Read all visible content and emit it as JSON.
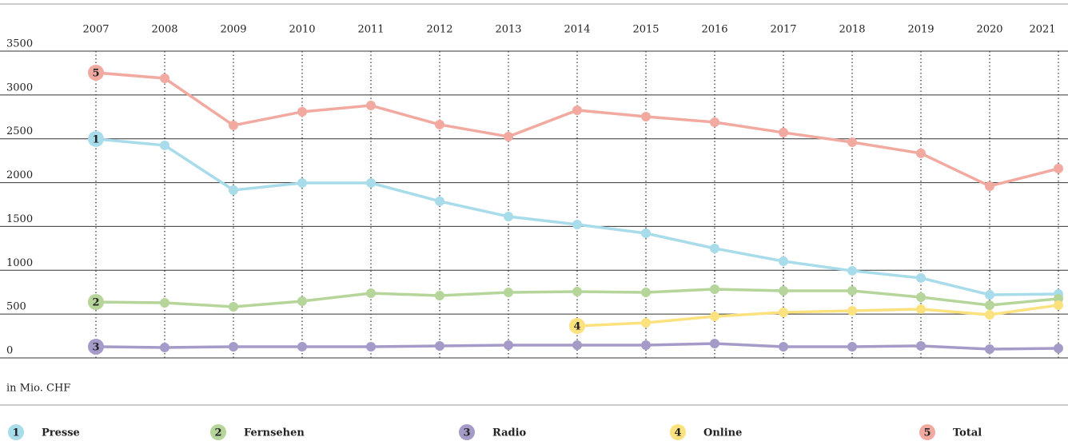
{
  "chart_data": {
    "type": "line",
    "unit_label": "in Mio. CHF",
    "categories": [
      "2007",
      "2008",
      "2009",
      "2010",
      "2011",
      "2012",
      "2013",
      "2014",
      "2015",
      "2016",
      "2017",
      "2018",
      "2019",
      "2020",
      "2021"
    ],
    "ylim": [
      0,
      3500
    ],
    "yticks": [
      0,
      500,
      1000,
      1500,
      2000,
      2500,
      3000,
      3500
    ],
    "grid": true,
    "series": [
      {
        "badge": 1,
        "name": "Presse",
        "color": "#a8dcea",
        "values": [
          2498,
          2425,
          1914,
          1996,
          1996,
          1787,
          1613,
          1522,
          1422,
          1249,
          1103,
          994,
          912,
          720,
          729
        ]
      },
      {
        "badge": 2,
        "name": "Fernsehen",
        "color": "#b5d59a",
        "values": [
          638,
          629,
          583,
          647,
          738,
          711,
          747,
          757,
          747,
          784,
          766,
          766,
          693,
          602,
          675
        ]
      },
      {
        "badge": 3,
        "name": "Radio",
        "color": "#a59bc8",
        "values": [
          128,
          119,
          128,
          128,
          128,
          137,
          146,
          146,
          146,
          164,
          128,
          128,
          137,
          100,
          109
        ]
      },
      {
        "badge": 4,
        "name": "Online",
        "color": "#fbe27e",
        "values": [
          null,
          null,
          null,
          null,
          null,
          null,
          null,
          365,
          401,
          474,
          520,
          538,
          556,
          492,
          602
        ]
      },
      {
        "badge": 5,
        "name": "Total",
        "color": "#f2a9a0",
        "values": [
          3254,
          3190,
          2653,
          2808,
          2880,
          2662,
          2525,
          2826,
          2753,
          2689,
          2571,
          2461,
          2334,
          1960,
          2160
        ]
      }
    ]
  }
}
